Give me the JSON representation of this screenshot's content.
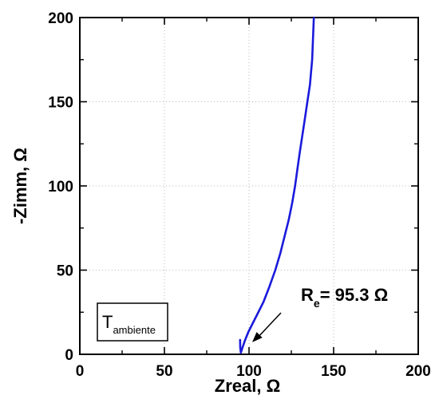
{
  "chart_data": {
    "type": "line",
    "xlabel": "Zreal, Ω",
    "ylabel": "-Zimm, Ω",
    "xlim": [
      0,
      200
    ],
    "ylim": [
      0,
      200
    ],
    "xticks": [
      "0",
      "50",
      "100",
      "150",
      "200"
    ],
    "yticks": [
      "0",
      "50",
      "100",
      "150",
      "200"
    ],
    "grid": true,
    "series": [
      {
        "color": "#1a1adc",
        "x": [
          94.7,
          94.8,
          95.2,
          96.0,
          97.5,
          99.5,
          102.0,
          105.0,
          108.5,
          112.0,
          115.5,
          118.5,
          121.0,
          123.5,
          125.5,
          127.2,
          128.6,
          130.0,
          131.5,
          133.0,
          134.5,
          136.0,
          137.3,
          138.3
        ],
        "y": [
          8.5,
          4.0,
          1.0,
          3.5,
          8.0,
          13.0,
          18.0,
          24.0,
          31.0,
          40.0,
          50.0,
          60.0,
          70.0,
          80.0,
          90.0,
          100.0,
          110.0,
          120.0,
          130.0,
          140.0,
          150.0,
          160.0,
          175.0,
          200.0
        ]
      }
    ],
    "annotations": [
      {
        "text_main": "R",
        "text_sub": "e",
        "text_rest": "= 95.3 Ω",
        "points_to": {
          "x": 100,
          "y": 1
        }
      }
    ],
    "legend_box": {
      "text_main": "T",
      "text_sub": "ambiente"
    }
  }
}
